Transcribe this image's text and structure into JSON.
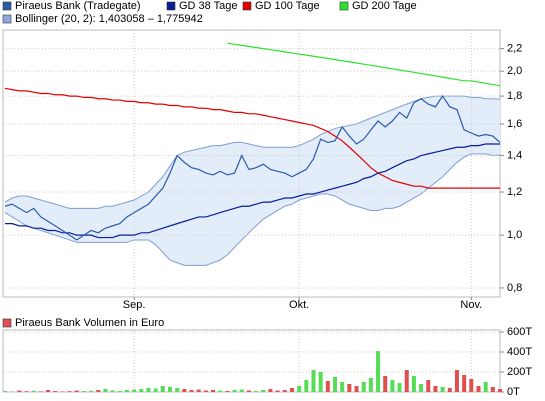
{
  "chart_data": [
    {
      "type": "line",
      "log_scale": true,
      "grid": true,
      "categories": [
        null,
        null,
        null,
        null,
        null,
        null,
        null,
        null,
        null,
        null,
        null,
        null,
        null,
        null,
        null,
        null,
        null,
        null,
        "Sep.",
        null,
        null,
        null,
        null,
        null,
        null,
        null,
        null,
        null,
        null,
        null,
        null,
        null,
        null,
        null,
        null,
        null,
        null,
        null,
        null,
        null,
        null,
        "Okt.",
        null,
        null,
        null,
        null,
        null,
        null,
        null,
        null,
        null,
        null,
        null,
        null,
        null,
        null,
        null,
        null,
        null,
        null,
        null,
        null,
        null,
        null,
        null,
        "Nov.",
        null,
        null,
        null,
        null
      ],
      "ylim": [
        0.77,
        2.38
      ],
      "yticks": [
        {
          "value": 0.8,
          "label": "0,8"
        },
        {
          "value": 1.0,
          "label": "1,0"
        },
        {
          "value": 1.2,
          "label": "1,2"
        },
        {
          "value": 1.4,
          "label": "1,4"
        },
        {
          "value": 1.6,
          "label": "1,6"
        },
        {
          "value": 1.8,
          "label": "1,8"
        },
        {
          "value": 2.0,
          "label": "2,0"
        },
        {
          "value": 2.2,
          "label": "2,2"
        }
      ],
      "series": [
        {
          "name": "Piraeus Bank (Tradegate)",
          "color": "#2a5caa",
          "values": [
            1.13,
            1.14,
            1.12,
            1.1,
            1.12,
            1.08,
            1.06,
            1.04,
            1.02,
            1.0,
            0.98,
            1.0,
            1.02,
            1.01,
            1.03,
            1.04,
            1.05,
            1.08,
            1.1,
            1.12,
            1.14,
            1.18,
            1.22,
            1.3,
            1.4,
            1.36,
            1.33,
            1.32,
            1.3,
            1.29,
            1.31,
            1.29,
            1.3,
            1.4,
            1.32,
            1.33,
            1.35,
            1.32,
            1.31,
            1.3,
            1.28,
            1.3,
            1.32,
            1.38,
            1.5,
            1.48,
            1.49,
            1.58,
            1.52,
            1.47,
            1.5,
            1.56,
            1.62,
            1.58,
            1.62,
            1.68,
            1.64,
            1.75,
            1.78,
            1.74,
            1.72,
            1.8,
            1.72,
            1.7,
            1.56,
            1.54,
            1.52,
            1.53,
            1.52,
            1.48
          ]
        },
        {
          "name": "GD 38 Tage",
          "color": "#0a1e96",
          "values": [
            1.05,
            1.05,
            1.04,
            1.04,
            1.03,
            1.03,
            1.02,
            1.02,
            1.01,
            1.01,
            1.0,
            1.0,
            1.0,
            0.99,
            0.99,
            0.99,
            1.0,
            1.0,
            1.0,
            1.01,
            1.01,
            1.02,
            1.03,
            1.04,
            1.05,
            1.06,
            1.07,
            1.08,
            1.08,
            1.09,
            1.1,
            1.11,
            1.12,
            1.13,
            1.13,
            1.14,
            1.15,
            1.15,
            1.16,
            1.17,
            1.17,
            1.18,
            1.19,
            1.19,
            1.2,
            1.21,
            1.22,
            1.23,
            1.24,
            1.25,
            1.27,
            1.28,
            1.3,
            1.31,
            1.33,
            1.35,
            1.37,
            1.38,
            1.4,
            1.41,
            1.42,
            1.43,
            1.44,
            1.45,
            1.45,
            1.46,
            1.46,
            1.47,
            1.47,
            1.47
          ]
        },
        {
          "name": "GD 100 Tage",
          "color": "#e00000",
          "values": [
            1.86,
            1.85,
            1.84,
            1.84,
            1.83,
            1.82,
            1.82,
            1.81,
            1.81,
            1.8,
            1.8,
            1.79,
            1.79,
            1.78,
            1.78,
            1.77,
            1.77,
            1.76,
            1.76,
            1.75,
            1.75,
            1.74,
            1.74,
            1.73,
            1.73,
            1.72,
            1.72,
            1.71,
            1.71,
            1.7,
            1.7,
            1.69,
            1.68,
            1.68,
            1.67,
            1.67,
            1.66,
            1.65,
            1.64,
            1.63,
            1.62,
            1.61,
            1.6,
            1.59,
            1.57,
            1.55,
            1.52,
            1.49,
            1.45,
            1.41,
            1.37,
            1.33,
            1.3,
            1.28,
            1.26,
            1.25,
            1.24,
            1.23,
            1.23,
            1.22,
            1.22,
            1.22,
            1.22,
            1.22,
            1.22,
            1.22,
            1.22,
            1.22,
            1.22,
            1.22
          ]
        },
        {
          "name": "GD 200 Tage",
          "color": "#2fe02f",
          "values": [
            null,
            null,
            null,
            null,
            null,
            null,
            null,
            null,
            null,
            null,
            null,
            null,
            null,
            null,
            null,
            null,
            null,
            null,
            null,
            null,
            null,
            null,
            null,
            null,
            null,
            null,
            null,
            null,
            null,
            null,
            null,
            2.25,
            2.24,
            2.23,
            2.22,
            2.21,
            2.2,
            2.19,
            2.18,
            2.17,
            2.16,
            2.15,
            2.14,
            2.13,
            2.12,
            2.11,
            2.1,
            2.09,
            2.08,
            2.07,
            2.06,
            2.05,
            2.04,
            2.03,
            2.02,
            2.01,
            2.0,
            1.99,
            1.98,
            1.97,
            1.96,
            1.95,
            1.94,
            1.93,
            1.92,
            1.92,
            1.91,
            1.9,
            1.89,
            1.88
          ]
        }
      ],
      "bands": [
        {
          "name": "Bollinger (20, 2): 1,403058 – 1,775942",
          "color": "#8fa9dc",
          "fill": "#e3ecf9",
          "line_color": "#7e9fd2",
          "upper": [
            1.15,
            1.17,
            1.18,
            1.18,
            1.17,
            1.16,
            1.15,
            1.14,
            1.13,
            1.12,
            1.12,
            1.12,
            1.12,
            1.12,
            1.13,
            1.13,
            1.14,
            1.15,
            1.16,
            1.18,
            1.2,
            1.24,
            1.28,
            1.34,
            1.4,
            1.42,
            1.43,
            1.44,
            1.45,
            1.46,
            1.46,
            1.47,
            1.48,
            1.48,
            1.47,
            1.46,
            1.45,
            1.45,
            1.45,
            1.45,
            1.45,
            1.46,
            1.48,
            1.5,
            1.53,
            1.55,
            1.57,
            1.58,
            1.59,
            1.6,
            1.62,
            1.64,
            1.66,
            1.68,
            1.7,
            1.72,
            1.74,
            1.76,
            1.78,
            1.79,
            1.8,
            1.8,
            1.8,
            1.8,
            1.8,
            1.79,
            1.79,
            1.78,
            1.78,
            1.775942
          ],
          "lower": [
            1.1,
            1.08,
            1.06,
            1.04,
            1.03,
            1.02,
            1.01,
            1.0,
            0.99,
            0.98,
            0.97,
            0.97,
            0.97,
            0.97,
            0.97,
            0.97,
            0.97,
            0.97,
            0.98,
            0.98,
            0.98,
            0.96,
            0.93,
            0.9,
            0.89,
            0.88,
            0.88,
            0.88,
            0.88,
            0.89,
            0.9,
            0.92,
            0.95,
            0.98,
            1.01,
            1.04,
            1.07,
            1.09,
            1.11,
            1.13,
            1.14,
            1.16,
            1.17,
            1.18,
            1.19,
            1.19,
            1.18,
            1.16,
            1.14,
            1.13,
            1.12,
            1.11,
            1.11,
            1.12,
            1.12,
            1.13,
            1.15,
            1.17,
            1.19,
            1.22,
            1.25,
            1.28,
            1.32,
            1.36,
            1.39,
            1.41,
            1.41,
            1.41,
            1.4,
            1.403058
          ]
        }
      ]
    },
    {
      "type": "bar",
      "grid": true,
      "ylim": [
        0,
        620000
      ],
      "yticks": [
        {
          "value": 0,
          "label": "0T"
        },
        {
          "value": 200000,
          "label": "200T"
        },
        {
          "value": 400000,
          "label": "400T"
        },
        {
          "value": 600000,
          "label": "600T"
        }
      ],
      "series": [
        {
          "name": "Piraeus Bank Volumen in Euro",
          "color": "#e05050",
          "up_color": "#55dd55",
          "down_color": "#e05050",
          "values": [
            10000,
            5000,
            15000,
            8000,
            12000,
            6000,
            20000,
            10000,
            5000,
            8000,
            15000,
            10000,
            12000,
            20000,
            30000,
            15000,
            10000,
            20000,
            25000,
            30000,
            40000,
            35000,
            60000,
            50000,
            40000,
            30000,
            20000,
            25000,
            15000,
            20000,
            15000,
            10000,
            20000,
            25000,
            15000,
            10000,
            20000,
            30000,
            15000,
            20000,
            40000,
            60000,
            120000,
            220000,
            200000,
            110000,
            150000,
            100000,
            80000,
            60000,
            100000,
            140000,
            410000,
            160000,
            120000,
            90000,
            220000,
            160000,
            80000,
            120000,
            60000,
            50000,
            40000,
            220000,
            170000,
            130000,
            60000,
            100000,
            50000,
            30000
          ]
        }
      ]
    }
  ]
}
